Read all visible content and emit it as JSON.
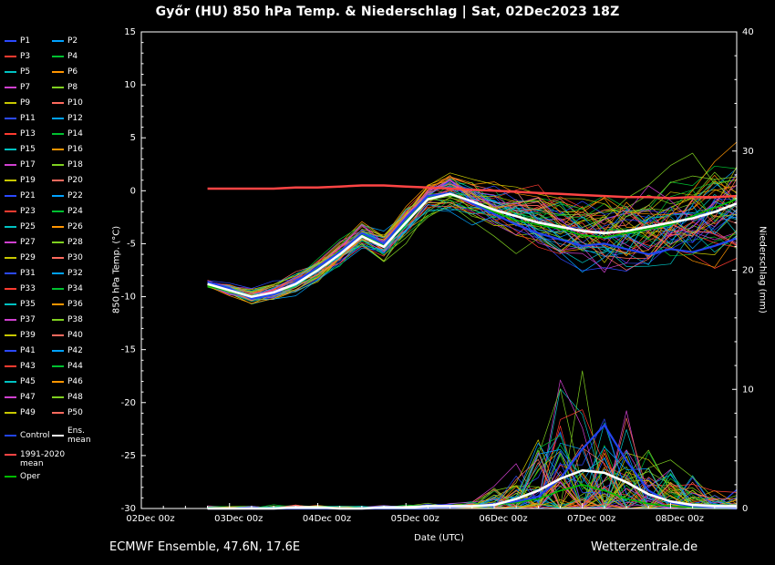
{
  "title": "Győr  (HU)  850 hPa Temp. & Niederschlag | Sat, 02Dec2023 18Z",
  "footer": {
    "left": "ECMWF Ensemble, 47.6N, 17.6E",
    "right": "Wetterzentrale.de",
    "xlabel": "Date (UTC)"
  },
  "legend": {
    "member_labels": [
      "P1",
      "P2",
      "P3",
      "P4",
      "P5",
      "P6",
      "P7",
      "P8",
      "P9",
      "P10",
      "P11",
      "P12",
      "P13",
      "P14",
      "P15",
      "P16",
      "P17",
      "P18",
      "P19",
      "P20",
      "P21",
      "P22",
      "P23",
      "P24",
      "P25",
      "P26",
      "P27",
      "P28",
      "P29",
      "P30",
      "P31",
      "P32",
      "P33",
      "P34",
      "P35",
      "P36",
      "P37",
      "P38",
      "P39",
      "P40",
      "P41",
      "P42",
      "P43",
      "P44",
      "P45",
      "P46",
      "P47",
      "P48",
      "P49",
      "P50"
    ],
    "special": [
      {
        "label": "Control",
        "color": "#2244ee"
      },
      {
        "label": "Ens. mean",
        "color": "#ffffff"
      },
      {
        "label": "1991-2020 mean",
        "color": "#ff4444"
      },
      {
        "label": "Oper",
        "color": "#00bb00"
      }
    ]
  },
  "chart_data": {
    "type": "line",
    "title": "Győr (HU) 850 hPa Temp. & Niederschlag | Sat, 02Dec2023 18Z",
    "x_label": "Date (UTC)",
    "x_range": [
      0,
      162
    ],
    "x_hours": [
      18,
      24,
      30,
      36,
      42,
      48,
      54,
      60,
      66,
      72,
      78,
      84,
      90,
      96,
      102,
      108,
      114,
      120,
      126,
      132,
      138,
      144,
      150,
      156,
      162
    ],
    "x_ticks": {
      "hours": [
        0,
        24,
        48,
        72,
        96,
        120,
        144
      ],
      "labels": [
        "02Dec 00z",
        "03Dec 00z",
        "04Dec 00z",
        "05Dec 00z",
        "06Dec 00z",
        "07Dec 00z",
        "08Dec 00z"
      ]
    },
    "y_left": {
      "label": "850 hPa Temp. (°C)",
      "range": [
        -30,
        15
      ],
      "ticks": [
        15,
        10,
        5,
        0,
        -5,
        -10,
        -15,
        -20,
        -25,
        -30
      ]
    },
    "y_right": {
      "label": "Niederschlag (mm)",
      "range": [
        0,
        40
      ],
      "ticks": [
        40,
        30,
        20,
        10,
        0
      ]
    },
    "series": [
      {
        "name": "Ens. mean",
        "color": "#ffffff",
        "width": 2.6,
        "temp": [
          -8.8,
          -9.4,
          -10.0,
          -9.6,
          -8.8,
          -7.5,
          -6.0,
          -4.3,
          -5.3,
          -3.0,
          -0.8,
          -0.3,
          -1.0,
          -1.8,
          -2.4,
          -3.0,
          -3.4,
          -3.8,
          -4.0,
          -3.8,
          -3.4,
          -3.0,
          -2.6,
          -2.0,
          -1.2
        ],
        "precip": [
          0,
          0,
          0,
          0,
          0.1,
          0.1,
          0,
          0,
          0.1,
          0.1,
          0.2,
          0.2,
          0.2,
          0.3,
          0.8,
          1.5,
          2.5,
          3.2,
          3.0,
          2.2,
          1.2,
          0.6,
          0.3,
          0.2,
          0.2
        ]
      },
      {
        "name": "Control",
        "color": "#2244ee",
        "width": 2.2,
        "temp": [
          -8.6,
          -9.2,
          -10.2,
          -9.8,
          -8.6,
          -7.2,
          -5.8,
          -4.0,
          -5.0,
          -2.6,
          -0.5,
          -0.2,
          -1.2,
          -2.2,
          -3.2,
          -4.0,
          -4.6,
          -5.2,
          -5.0,
          -5.5,
          -6.0,
          -5.5,
          -5.8,
          -5.2,
          -4.5
        ],
        "precip": [
          0,
          0,
          0,
          0,
          0,
          0,
          0,
          0,
          0,
          0,
          0,
          0.1,
          0.2,
          0.4,
          0.6,
          1.0,
          2.5,
          5.0,
          7.0,
          4.0,
          1.5,
          0.5,
          0.2,
          0.1,
          0
        ]
      },
      {
        "name": "Oper",
        "color": "#00bb00",
        "width": 1.6,
        "temp": [
          -9.0,
          -9.5,
          -10.1,
          -9.7,
          -8.7,
          -7.3,
          -5.7,
          -4.1,
          -5.1,
          -2.8,
          -0.6,
          -0.4,
          -1.1,
          -2.0,
          -2.8,
          -3.2,
          -3.6,
          -4.2,
          -4.4,
          -4.0,
          -3.6,
          -3.2,
          -2.4,
          -1.6,
          -0.8
        ],
        "precip": [
          0,
          0,
          0,
          0,
          0,
          0,
          0,
          0,
          0,
          0,
          0.1,
          0.1,
          0.2,
          0.3,
          0.5,
          0.8,
          1.5,
          2.0,
          1.5,
          0.8,
          0.4,
          0.2,
          0.1,
          0,
          0
        ]
      },
      {
        "name": "1991-2020 mean",
        "color": "#ff4444",
        "width": 2.5,
        "temp": [
          0.2,
          0.2,
          0.2,
          0.2,
          0.3,
          0.3,
          0.4,
          0.5,
          0.5,
          0.4,
          0.3,
          0.2,
          0.1,
          0.0,
          -0.1,
          -0.2,
          -0.3,
          -0.4,
          -0.5,
          -0.6,
          -0.6,
          -0.7,
          -0.6,
          -0.6,
          -0.5
        ],
        "precip": null
      }
    ],
    "ensemble": {
      "count": 50,
      "seed": 1234,
      "width": 0.7,
      "palette": [
        "#2b49ff",
        "#00a2ff",
        "#ff3b30",
        "#00c030",
        "#00c2c2",
        "#ff9500",
        "#d040d0",
        "#7fd020",
        "#c8c800",
        "#ff6a5e"
      ],
      "temp_spread": [
        0.5,
        0.7,
        0.9,
        1.0,
        1.1,
        1.2,
        1.3,
        1.4,
        1.5,
        1.7,
        1.8,
        2.0,
        2.2,
        2.5,
        2.8,
        3.0,
        3.3,
        3.6,
        3.9,
        4.2,
        4.4,
        4.6,
        4.8,
        5.0,
        5.2
      ],
      "precip_max": [
        0.2,
        0.2,
        0.3,
        0.3,
        0.4,
        0.3,
        0.2,
        0.2,
        0.3,
        0.4,
        0.5,
        0.5,
        0.8,
        2.0,
        5.0,
        8.0,
        10.0,
        10.0,
        9.0,
        8.0,
        6.0,
        4.0,
        2.5,
        1.5,
        1.5
      ]
    }
  }
}
